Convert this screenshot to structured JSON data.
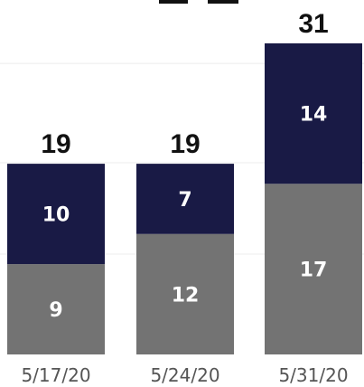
{
  "chart_data": {
    "type": "bar",
    "stacked": true,
    "categories": [
      "5/17/20",
      "5/24/20",
      "5/31/20"
    ],
    "series": [
      {
        "values": [
          9,
          12,
          17
        ],
        "color": "#737373"
      },
      {
        "values": [
          10,
          7,
          14
        ],
        "color": "#191a45"
      }
    ],
    "totals": [
      19,
      19,
      31
    ],
    "ylim": [
      0,
      35
    ],
    "grid": true
  }
}
